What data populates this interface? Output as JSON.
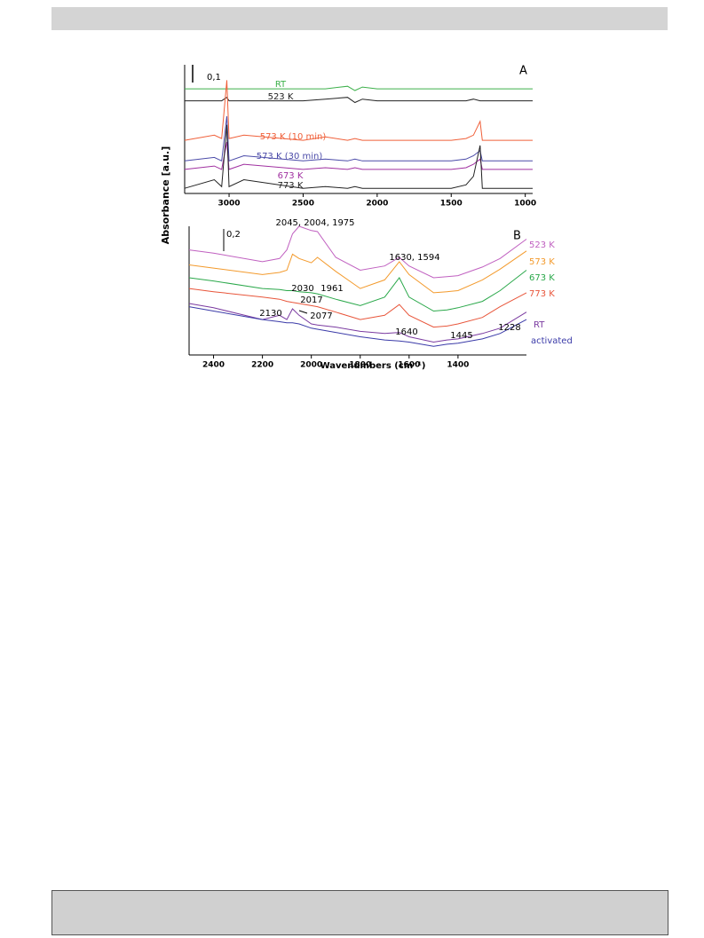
{
  "chart_data": [
    {
      "type": "line",
      "panel": "A",
      "scale_label": "0,1",
      "ylabel": "Absorbance [a.u.]",
      "xlim": [
        3300,
        950
      ],
      "xticks": [
        3000,
        2500,
        2000,
        1500,
        1000
      ],
      "ylim": [
        0,
        0.75
      ],
      "x": [
        3300,
        3100,
        3050,
        3015,
        3000,
        2900,
        2500,
        2350,
        2200,
        2150,
        2100,
        2000,
        1500,
        1400,
        1350,
        1305,
        1290,
        1200,
        950
      ],
      "series": [
        {
          "name": "RT",
          "color": "#3cb04a",
          "values": [
            0.61,
            0.61,
            0.61,
            0.61,
            0.61,
            0.61,
            0.61,
            0.61,
            0.625,
            0.6,
            0.62,
            0.61,
            0.61,
            0.61,
            0.61,
            0.61,
            0.61,
            0.61,
            0.61
          ]
        },
        {
          "name": "523 K",
          "color": "#222222",
          "values": [
            0.54,
            0.54,
            0.54,
            0.56,
            0.54,
            0.54,
            0.54,
            0.55,
            0.56,
            0.53,
            0.55,
            0.54,
            0.54,
            0.54,
            0.55,
            0.54,
            0.54,
            0.54,
            0.54
          ]
        },
        {
          "name": "573 K (10 min)",
          "color": "#f0603a",
          "values": [
            0.31,
            0.34,
            0.32,
            0.66,
            0.32,
            0.34,
            0.31,
            0.33,
            0.31,
            0.32,
            0.31,
            0.31,
            0.31,
            0.32,
            0.34,
            0.42,
            0.31,
            0.31,
            0.31
          ]
        },
        {
          "name": "573 K (30 min)",
          "color": "#4a4aa8",
          "values": [
            0.19,
            0.21,
            0.19,
            0.45,
            0.19,
            0.22,
            0.19,
            0.2,
            0.19,
            0.2,
            0.19,
            0.19,
            0.19,
            0.2,
            0.22,
            0.25,
            0.19,
            0.19,
            0.19
          ]
        },
        {
          "name": "673 K",
          "color": "#a030a0",
          "values": [
            0.14,
            0.16,
            0.14,
            0.3,
            0.14,
            0.17,
            0.14,
            0.15,
            0.14,
            0.15,
            0.14,
            0.14,
            0.14,
            0.15,
            0.17,
            0.2,
            0.14,
            0.14,
            0.14
          ]
        },
        {
          "name": "773 K",
          "color": "#222222",
          "values": [
            0.03,
            0.08,
            0.04,
            0.4,
            0.04,
            0.08,
            0.03,
            0.04,
            0.03,
            0.04,
            0.03,
            0.03,
            0.03,
            0.05,
            0.1,
            0.28,
            0.03,
            0.03,
            0.03
          ]
        }
      ]
    },
    {
      "type": "line",
      "panel": "B",
      "scale_label": "0,2",
      "xlabel": "Wavenumbers (cm⁻¹)",
      "xlim": [
        2500,
        1120
      ],
      "xticks": [
        2400,
        2200,
        2000,
        1800,
        1600,
        1400
      ],
      "ylim": [
        0,
        1.2
      ],
      "x": [
        2500,
        2400,
        2200,
        2130,
        2100,
        2077,
        2050,
        2000,
        1975,
        1900,
        1800,
        1700,
        1640,
        1600,
        1500,
        1445,
        1400,
        1300,
        1228,
        1120
      ],
      "series": [
        {
          "name": "523 K",
          "color": "#c060c0",
          "values": [
            0.98,
            0.95,
            0.87,
            0.9,
            0.98,
            1.13,
            1.2,
            1.16,
            1.15,
            0.91,
            0.79,
            0.83,
            0.91,
            0.83,
            0.72,
            0.73,
            0.74,
            0.82,
            0.9,
            1.08
          ]
        },
        {
          "name": "573 K",
          "color": "#f39a2c",
          "values": [
            0.84,
            0.81,
            0.75,
            0.77,
            0.79,
            0.94,
            0.9,
            0.86,
            0.91,
            0.78,
            0.62,
            0.7,
            0.87,
            0.75,
            0.58,
            0.59,
            0.6,
            0.7,
            0.8,
            0.97
          ]
        },
        {
          "name": "673 K",
          "color": "#2aa84a",
          "values": [
            0.72,
            0.69,
            0.62,
            0.61,
            0.6,
            0.6,
            0.59,
            0.58,
            0.57,
            0.52,
            0.46,
            0.54,
            0.72,
            0.54,
            0.41,
            0.42,
            0.44,
            0.5,
            0.6,
            0.79
          ]
        },
        {
          "name": "773 K",
          "color": "#e8553a",
          "values": [
            0.62,
            0.59,
            0.54,
            0.52,
            0.5,
            0.49,
            0.48,
            0.46,
            0.45,
            0.4,
            0.33,
            0.37,
            0.47,
            0.37,
            0.26,
            0.27,
            0.29,
            0.35,
            0.45,
            0.58
          ]
        },
        {
          "name": "RT",
          "color": "#7a3aa0",
          "values": [
            0.48,
            0.44,
            0.33,
            0.37,
            0.33,
            0.43,
            0.37,
            0.29,
            0.28,
            0.26,
            0.22,
            0.2,
            0.21,
            0.17,
            0.12,
            0.14,
            0.15,
            0.2,
            0.25,
            0.4
          ]
        },
        {
          "name": "activated",
          "color": "#3a3aa8",
          "values": [
            0.45,
            0.41,
            0.33,
            0.31,
            0.3,
            0.3,
            0.29,
            0.25,
            0.24,
            0.21,
            0.17,
            0.14,
            0.13,
            0.12,
            0.08,
            0.1,
            0.11,
            0.15,
            0.2,
            0.33
          ]
        }
      ],
      "annotations": [
        "2045, 2004, 1975",
        "1630, 1594",
        "2030",
        "1961",
        "2017",
        "2130",
        "2077",
        "1640",
        "1445",
        "1228"
      ]
    }
  ]
}
